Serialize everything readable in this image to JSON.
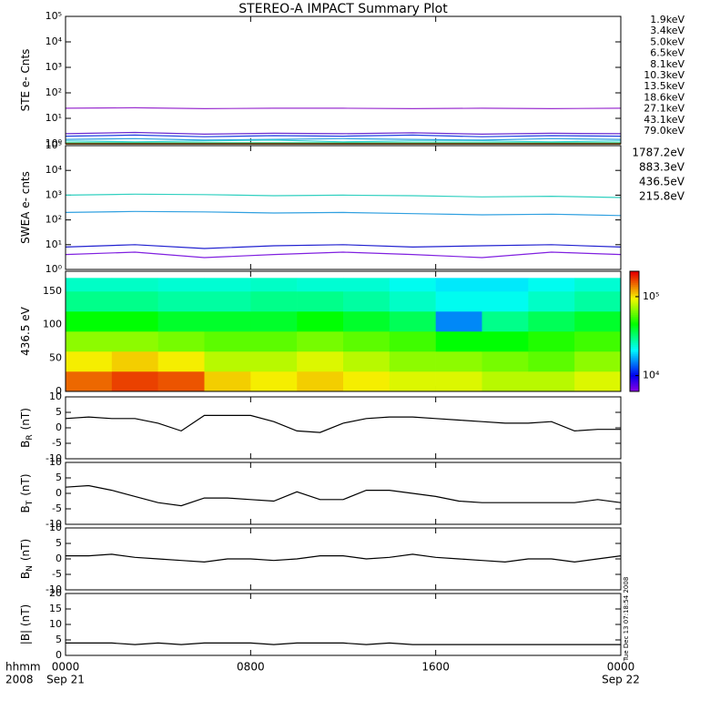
{
  "title": "STEREO-A IMPACT Summary Plot",
  "xlim": [
    0,
    24
  ],
  "xticks": [
    {
      "value": 0,
      "label": "0000"
    },
    {
      "value": 8,
      "label": "0800"
    },
    {
      "value": 16,
      "label": "1600"
    },
    {
      "value": 24,
      "label": "0000"
    }
  ],
  "xdates": [
    {
      "value": 0,
      "label": "Sep 21"
    },
    {
      "value": 24,
      "label": "Sep 22"
    }
  ],
  "xaxis_labels": [
    "hhmm",
    "2008"
  ],
  "timestamp": "Tue Dec 13 07:18:54 2008",
  "chart_data": [
    {
      "type": "line",
      "log": true,
      "ylabel": "STE e- Cnts",
      "ylim": [
        1,
        100000
      ],
      "yticks": [
        {
          "value": 1,
          "label": "10⁰"
        },
        {
          "value": 10,
          "label": "10¹"
        },
        {
          "value": 100,
          "label": "10²"
        },
        {
          "value": 1000,
          "label": "10³"
        },
        {
          "value": 10000,
          "label": "10⁴"
        },
        {
          "value": 100000,
          "label": "10⁵"
        }
      ],
      "x": [
        0,
        3,
        6,
        9,
        12,
        15,
        18,
        21,
        24
      ],
      "series": [
        {
          "name": "1.9keV",
          "color": "#9b30d0",
          "values": [
            25,
            26,
            24,
            25,
            25,
            24,
            25,
            24,
            25
          ]
        },
        {
          "name": "3.4keV",
          "color": "#6a2ad0",
          "values": [
            2.5,
            2.8,
            2.4,
            2.6,
            2.5,
            2.7,
            2.4,
            2.6,
            2.5
          ]
        },
        {
          "name": "5.0keV",
          "color": "#2040e0",
          "values": [
            2,
            2.2,
            1.9,
            2.1,
            2,
            2.2,
            1.9,
            2.1,
            2
          ]
        },
        {
          "name": "6.5keV",
          "color": "#30a0e0",
          "values": [
            1.5,
            1.6,
            1.4,
            1.5,
            1.6,
            1.5,
            1.4,
            1.6,
            1.5
          ]
        },
        {
          "name": "8.1keV",
          "color": "#30d0d0",
          "values": [
            1.3,
            1.2,
            1.3,
            1.4,
            1.2,
            1.3,
            1.3,
            1.2,
            1.3
          ]
        },
        {
          "name": "10.3keV",
          "color": "#30d080",
          "values": [
            1.1,
            1.1,
            1.1,
            1.1,
            1.1,
            1.1,
            1.1,
            1.1,
            1.1
          ]
        },
        {
          "name": "13.5keV",
          "color": "#40c020",
          "values": [
            1,
            1,
            1,
            1,
            1,
            1,
            1,
            1,
            1
          ]
        },
        {
          "name": "18.6keV",
          "color": "#b0c020",
          "values": [
            1,
            1,
            1,
            1,
            1,
            1,
            1,
            1,
            1
          ]
        },
        {
          "name": "27.1keV",
          "color": "#e0b000",
          "values": [
            1,
            1,
            1,
            1,
            1,
            1,
            1,
            1,
            1
          ]
        },
        {
          "name": "43.1keV",
          "color": "#e08000",
          "values": [
            1,
            1,
            1,
            1,
            1,
            1,
            1,
            1,
            1
          ]
        },
        {
          "name": "79.0keV",
          "color": "#e03020",
          "values": [
            1,
            1,
            1,
            1,
            1,
            1,
            1,
            1,
            1
          ]
        }
      ]
    },
    {
      "type": "line",
      "log": true,
      "ylabel": "SWEA e- cnts",
      "ylim": [
        1,
        100000
      ],
      "yticks": [
        {
          "value": 1,
          "label": "10⁰"
        },
        {
          "value": 10,
          "label": "10¹"
        },
        {
          "value": 100,
          "label": "10²"
        },
        {
          "value": 1000,
          "label": "10³"
        },
        {
          "value": 10000,
          "label": "10⁴"
        },
        {
          "value": 100000,
          "label": "10⁵"
        }
      ],
      "x": [
        0,
        3,
        6,
        9,
        12,
        15,
        18,
        21,
        24
      ],
      "series": [
        {
          "name": "1787.2eV",
          "color": "#8020e0",
          "values": [
            4,
            5,
            3,
            4,
            5,
            4,
            3,
            5,
            4
          ]
        },
        {
          "name": "883.3eV",
          "color": "#2020d0",
          "values": [
            8,
            10,
            7,
            9,
            10,
            8,
            9,
            10,
            8
          ]
        },
        {
          "name": "436.5eV",
          "color": "#30a0e0",
          "values": [
            200,
            220,
            210,
            190,
            200,
            180,
            160,
            170,
            150
          ]
        },
        {
          "name": "215.8eV",
          "color": "#30d0c0",
          "values": [
            1000,
            1100,
            1050,
            950,
            1000,
            950,
            850,
            900,
            800
          ]
        }
      ]
    },
    {
      "type": "heatmap",
      "ylabel": "436.5 eV",
      "ylim": [
        0,
        180
      ],
      "yticks": [
        0,
        50,
        100,
        150
      ],
      "x_edges": [
        0,
        2,
        4,
        6,
        8,
        10,
        12,
        14,
        16,
        18,
        20,
        22,
        24
      ],
      "y_edges": [
        0,
        30,
        60,
        90,
        120,
        150,
        170
      ],
      "z": [
        [
          150000,
          170000,
          160000,
          110000,
          100000,
          110000,
          100000,
          90000,
          90000,
          80000,
          80000,
          90000
        ],
        [
          100000,
          110000,
          100000,
          80000,
          80000,
          90000,
          80000,
          70000,
          70000,
          65000,
          60000,
          70000
        ],
        [
          70000,
          70000,
          65000,
          60000,
          60000,
          65000,
          60000,
          55000,
          45000,
          45000,
          50000,
          55000
        ],
        [
          45000,
          45000,
          40000,
          40000,
          40000,
          45000,
          40000,
          35000,
          15000,
          30000,
          35000,
          40000
        ],
        [
          30000,
          30000,
          28000,
          28000,
          30000,
          30000,
          28000,
          25000,
          22000,
          22000,
          25000,
          28000
        ],
        [
          25000,
          25000,
          24000,
          24000,
          25000,
          24000,
          24000,
          22000,
          20000,
          20000,
          22000,
          24000
        ]
      ],
      "clim": [
        6300,
        210000
      ],
      "cticks": [
        {
          "value": 10000,
          "label": "10⁴"
        },
        {
          "value": 100000,
          "label": "10⁵"
        }
      ]
    },
    {
      "type": "line",
      "ylabel": "B",
      "ylabel_sub": "R",
      "ylabel_unit": "(nT)",
      "ylim": [
        -10,
        10
      ],
      "yticks": [
        -10,
        -5,
        0,
        5,
        10
      ],
      "x": [
        0,
        1,
        2,
        3,
        4,
        5,
        6,
        7,
        8,
        9,
        10,
        11,
        12,
        13,
        14,
        15,
        16,
        17,
        18,
        19,
        20,
        21,
        22,
        23,
        24
      ],
      "series": [
        {
          "name": "BR",
          "color": "#000000",
          "values": [
            3,
            3.5,
            3,
            3,
            1.5,
            -1,
            4,
            4,
            4,
            2,
            -1,
            -1.5,
            1.5,
            3,
            3.5,
            3.5,
            3,
            2.5,
            2,
            1.5,
            1.5,
            2,
            -1,
            -0.5,
            -0.5
          ]
        }
      ]
    },
    {
      "type": "line",
      "ylabel": "B",
      "ylabel_sub": "T",
      "ylabel_unit": "(nT)",
      "ylim": [
        -10,
        10
      ],
      "yticks": [
        -10,
        -5,
        0,
        5,
        10
      ],
      "x": [
        0,
        1,
        2,
        3,
        4,
        5,
        6,
        7,
        8,
        9,
        10,
        11,
        12,
        13,
        14,
        15,
        16,
        17,
        18,
        19,
        20,
        21,
        22,
        23,
        24
      ],
      "series": [
        {
          "name": "BT",
          "color": "#000000",
          "values": [
            2,
            2.5,
            1,
            -1,
            -3,
            -4,
            -1.5,
            -1.5,
            -2,
            -2.5,
            0.5,
            -2,
            -2,
            1,
            1,
            0,
            -1,
            -2.5,
            -3,
            -3,
            -3,
            -3,
            -3,
            -2,
            -3
          ]
        }
      ]
    },
    {
      "type": "line",
      "ylabel": "B",
      "ylabel_sub": "N",
      "ylabel_unit": "(nT)",
      "ylim": [
        -10,
        10
      ],
      "yticks": [
        -10,
        -5,
        0,
        5,
        10
      ],
      "x": [
        0,
        1,
        2,
        3,
        4,
        5,
        6,
        7,
        8,
        9,
        10,
        11,
        12,
        13,
        14,
        15,
        16,
        17,
        18,
        19,
        20,
        21,
        22,
        23,
        24
      ],
      "series": [
        {
          "name": "BN",
          "color": "#000000",
          "values": [
            1,
            1,
            1.5,
            0.5,
            0,
            -0.5,
            -1,
            0,
            0,
            -0.5,
            0,
            1,
            1,
            0,
            0.5,
            1.5,
            0.5,
            0,
            -0.5,
            -1,
            0,
            0,
            -1,
            0,
            1
          ]
        }
      ]
    },
    {
      "type": "line",
      "ylabel": "|B| (nT)",
      "ylim": [
        0,
        20
      ],
      "yticks": [
        0,
        5,
        10,
        15,
        20
      ],
      "x": [
        0,
        1,
        2,
        3,
        4,
        5,
        6,
        7,
        8,
        9,
        10,
        11,
        12,
        13,
        14,
        15,
        16,
        17,
        18,
        19,
        20,
        21,
        22,
        23,
        24
      ],
      "series": [
        {
          "name": "|B|",
          "color": "#000000",
          "values": [
            4,
            4,
            4,
            3.5,
            4,
            3.5,
            4,
            4,
            4,
            3.5,
            4,
            4,
            4,
            3.5,
            4,
            3.5,
            3.5,
            3.5,
            3.5,
            3.5,
            3.5,
            3.5,
            3.5,
            3.5,
            3.5
          ]
        }
      ]
    }
  ]
}
